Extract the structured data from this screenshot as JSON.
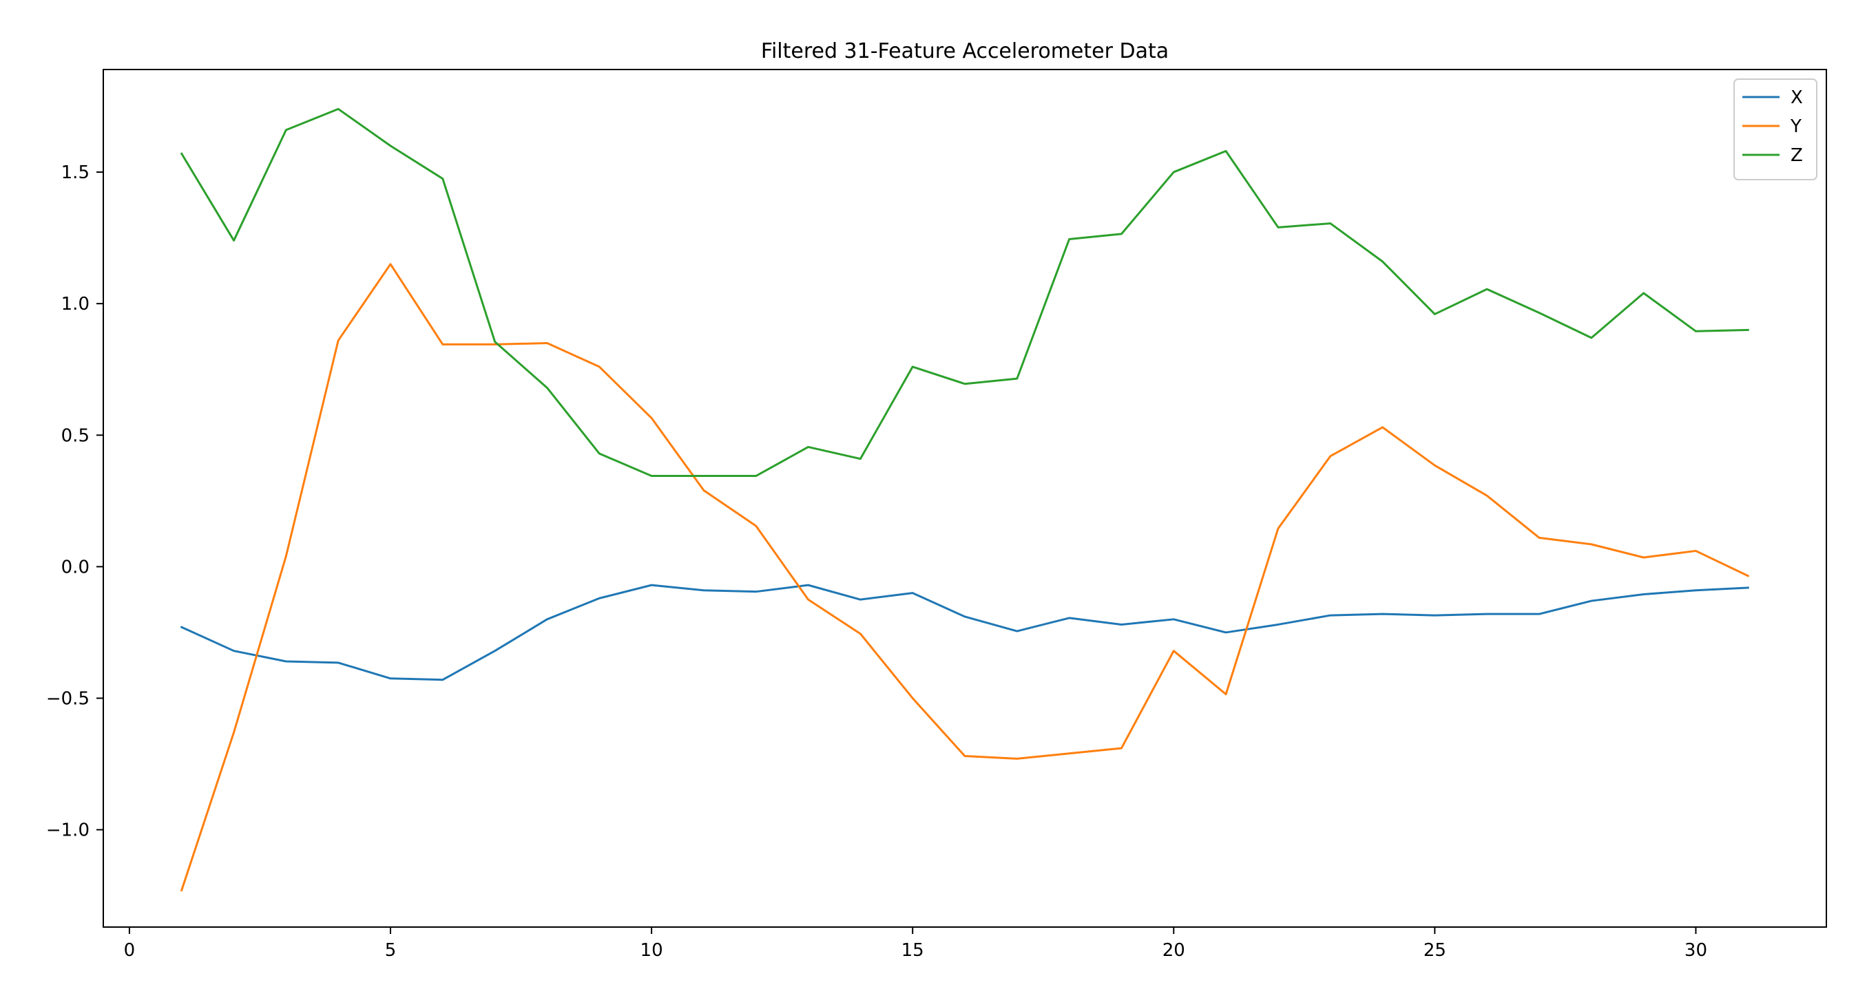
{
  "chart_data": {
    "type": "line",
    "title": "Filtered 31-Feature Accelerometer Data",
    "xlabel": "",
    "ylabel": "",
    "xlim": [
      -0.5,
      32.5
    ],
    "ylim": [
      -1.37,
      1.89
    ],
    "x_ticks": [
      0,
      5,
      10,
      15,
      20,
      25,
      30
    ],
    "y_ticks": [
      -1.0,
      -0.5,
      0.0,
      0.5,
      1.0,
      1.5
    ],
    "grid": false,
    "legend_position": "top-right",
    "x": [
      1,
      2,
      3,
      4,
      5,
      6,
      7,
      8,
      9,
      10,
      11,
      12,
      13,
      14,
      15,
      16,
      17,
      18,
      19,
      20,
      21,
      22,
      23,
      24,
      25,
      26,
      27,
      28,
      29,
      30,
      31
    ],
    "series": [
      {
        "name": "X",
        "color": "#1f77b4",
        "values": [
          -0.23,
          -0.32,
          -0.36,
          -0.365,
          -0.425,
          -0.43,
          -0.32,
          -0.2,
          -0.12,
          -0.07,
          -0.09,
          -0.095,
          -0.07,
          -0.125,
          -0.1,
          -0.19,
          -0.245,
          -0.195,
          -0.22,
          -0.2,
          -0.25,
          -0.22,
          -0.185,
          -0.18,
          -0.185,
          -0.18,
          -0.18,
          -0.13,
          -0.105,
          -0.09,
          -0.08
        ]
      },
      {
        "name": "Y",
        "color": "#ff7f0e",
        "values": [
          -1.23,
          -0.63,
          0.04,
          0.86,
          1.15,
          0.845,
          0.845,
          0.85,
          0.76,
          0.565,
          0.29,
          0.155,
          -0.125,
          -0.255,
          -0.5,
          -0.72,
          -0.73,
          -0.71,
          -0.69,
          -0.32,
          -0.485,
          0.145,
          0.42,
          0.53,
          0.385,
          0.27,
          0.11,
          0.085,
          0.035,
          0.06,
          -0.035
        ]
      },
      {
        "name": "Z",
        "color": "#2ca02c",
        "values": [
          1.57,
          1.24,
          1.66,
          1.74,
          1.6,
          1.475,
          0.855,
          0.68,
          0.43,
          0.345,
          0.345,
          0.345,
          0.455,
          0.41,
          0.76,
          0.695,
          0.715,
          1.245,
          1.265,
          1.5,
          1.58,
          1.29,
          1.305,
          1.16,
          0.96,
          1.055,
          0.965,
          0.87,
          1.04,
          0.895,
          0.9
        ]
      }
    ]
  }
}
